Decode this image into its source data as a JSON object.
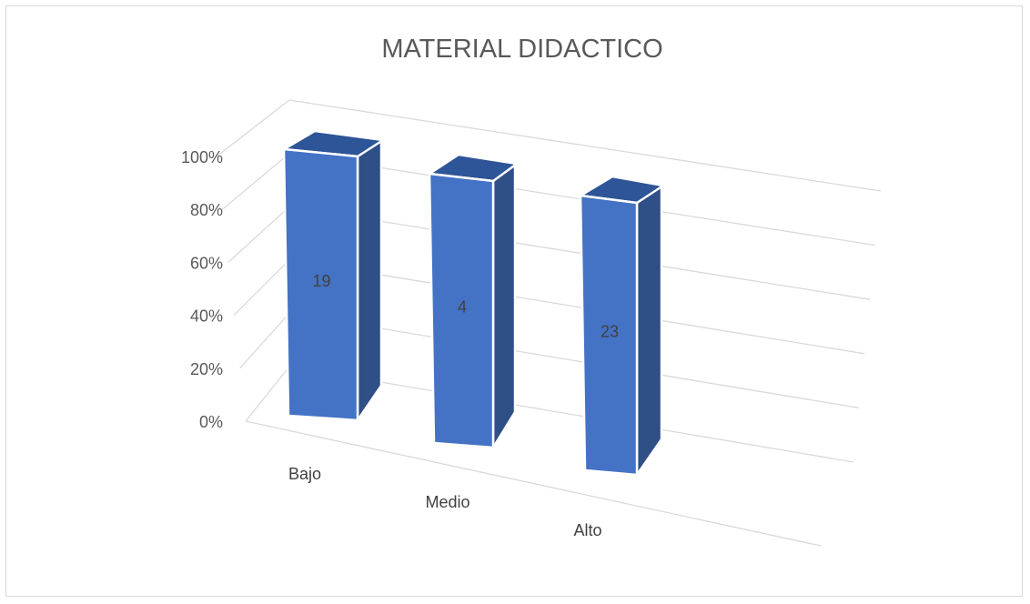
{
  "chart_data": {
    "type": "bar",
    "style": "3d-column",
    "title": "MATERIAL  DIDACTICO",
    "categories": [
      "Bajo",
      "Medio",
      "Alto"
    ],
    "values": [
      100,
      100,
      100
    ],
    "data_labels": [
      "19",
      "4",
      "23"
    ],
    "y_ticks": [
      "0%",
      "20%",
      "40%",
      "60%",
      "80%",
      "100%"
    ],
    "ylim": [
      0,
      100
    ],
    "grid": true,
    "legend": "none",
    "colors": {
      "front": "#4472c4",
      "side": "#2f4f87",
      "top": "#2e5597",
      "grid": "#d9d9d9",
      "text": "#595959"
    }
  }
}
